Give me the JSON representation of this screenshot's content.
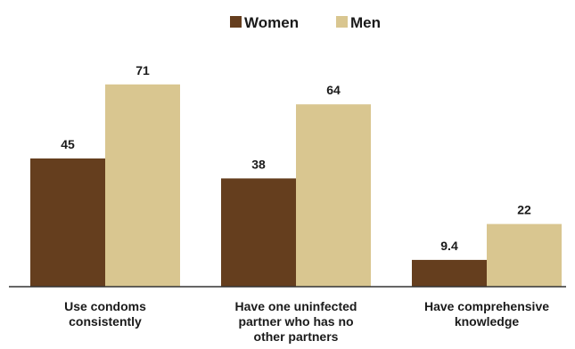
{
  "chart_data": {
    "type": "bar",
    "title": "",
    "xlabel": "",
    "ylabel": "",
    "categories": [
      [
        "Use condoms",
        "consistently"
      ],
      [
        "Have one uninfected",
        "partner who has no",
        "other partners"
      ],
      [
        "Have comprehensive",
        "knowledge"
      ]
    ],
    "series": [
      {
        "name": "Women",
        "color": "#653e1e",
        "values": [
          45,
          38,
          9.4
        ],
        "labels": [
          "45",
          "38",
          "9.4"
        ]
      },
      {
        "name": "Men",
        "color": "#d9c690",
        "values": [
          71,
          64,
          22
        ],
        "labels": [
          "71",
          "64",
          "22"
        ]
      }
    ],
    "ylim": [
      0,
      100
    ],
    "grid": false,
    "legend_position": "top-center",
    "data_labels": true
  }
}
